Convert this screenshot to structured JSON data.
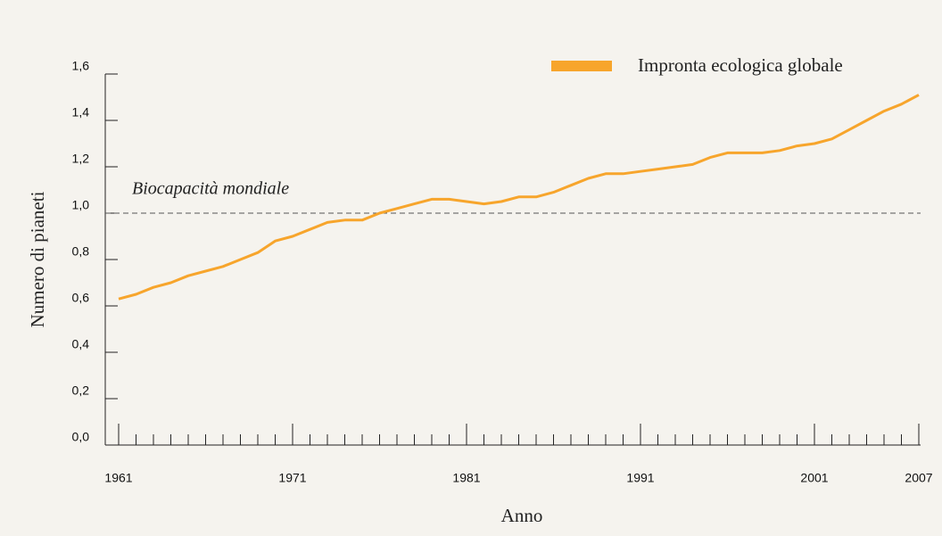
{
  "chart_data": {
    "type": "line",
    "x_label": "Anno",
    "y_label": "Numero di pianeti",
    "x": [
      1961,
      1962,
      1963,
      1964,
      1965,
      1966,
      1967,
      1968,
      1969,
      1970,
      1971,
      1972,
      1973,
      1974,
      1975,
      1976,
      1977,
      1978,
      1979,
      1980,
      1981,
      1982,
      1983,
      1984,
      1985,
      1986,
      1987,
      1988,
      1989,
      1990,
      1991,
      1992,
      1993,
      1994,
      1995,
      1996,
      1997,
      1998,
      1999,
      2000,
      2001,
      2002,
      2003,
      2004,
      2005,
      2006,
      2007
    ],
    "series": [
      {
        "name": "Impronta ecologica globale",
        "color": "#f7a52c",
        "values": [
          0.63,
          0.65,
          0.68,
          0.7,
          0.73,
          0.75,
          0.77,
          0.8,
          0.83,
          0.88,
          0.9,
          0.93,
          0.96,
          0.97,
          0.97,
          1.0,
          1.02,
          1.04,
          1.06,
          1.06,
          1.05,
          1.04,
          1.05,
          1.07,
          1.07,
          1.09,
          1.12,
          1.15,
          1.17,
          1.17,
          1.18,
          1.19,
          1.2,
          1.21,
          1.24,
          1.26,
          1.26,
          1.26,
          1.27,
          1.29,
          1.3,
          1.32,
          1.36,
          1.4,
          1.44,
          1.47,
          1.51
        ]
      }
    ],
    "xlim": [
      1961,
      2007
    ],
    "xticks": [
      1961,
      1971,
      1981,
      1991,
      2001,
      2007
    ],
    "ylim": [
      0,
      1.6
    ],
    "yticks": [
      {
        "value": 0,
        "label": "0,0"
      },
      {
        "value": 0.2,
        "label": "0,2"
      },
      {
        "value": 0.4,
        "label": "0,4"
      },
      {
        "value": 0.6,
        "label": "0,6"
      },
      {
        "value": 0.8,
        "label": "0,8"
      },
      {
        "value": 1,
        "label": "1,0"
      },
      {
        "value": 1.2,
        "label": "1,2"
      },
      {
        "value": 1.4,
        "label": "1,4"
      },
      {
        "value": 1.6,
        "label": "1,6"
      }
    ],
    "reference_lines": [
      {
        "value": 1,
        "label": "Biocapacità mondiale",
        "color": "#555555"
      }
    ],
    "legend": "top-right",
    "grid": false
  }
}
